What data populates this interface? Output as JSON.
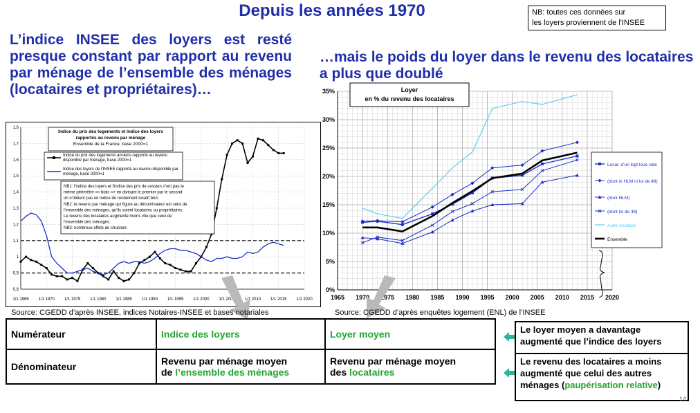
{
  "title": "Depuis les années 1970",
  "nb_note": [
    "NB: toutes ces données sur",
    "les loyers  proviennent de l'INSEE"
  ],
  "left_heading": "L’indice INSEE des loyers est resté presque constant par rapport au revenu par ménage de l’ensemble des ménages (locataires et propriétaires)…",
  "right_heading": "…mais le poids du loyer dans le revenu des locataires a plus que doublé",
  "left_source": "Source: CGEDD d’après INSEE, indices Notaires-INSEE et bases notariales",
  "right_source": "Source: CGEDD d’après enquêtes logement (ENL) de l’INSEE",
  "table": {
    "row1_label": "Numérateur",
    "row1_left": "Indice des loyers",
    "row1_right": "Loyer moyen",
    "row2_label": "Dénominateur",
    "row2_left_a": "Revenu par ménage moyen",
    "row2_left_b": "de ",
    "row2_left_c": "l’ensemble des ménages",
    "row2_right_a": "Revenu par ménage moyen",
    "row2_right_b": "des ",
    "row2_right_c": "locataires"
  },
  "notes": {
    "note1": "Le loyer moyen a davantage augmenté que l’indice des loyers",
    "note2_a": "Le revenu des locataires a moins augmenté que celui des autres ménages (",
    "note2_b": "paupérisation relative",
    "note2_c": ")",
    "page_number": "14"
  },
  "colors": {
    "heading": "#1f2faa",
    "green": "#22a52c",
    "series_black": "#000000",
    "series_blue": "#1a2dc8",
    "series_cyan": "#5ccdf0"
  },
  "chart_data": [
    {
      "type": "line",
      "title_lines": [
        "Indice du prix des logements et indice des loyers",
        "rapportés au revenu par ménage",
        "Ensemble de la France, base 2000=1"
      ],
      "xlim": [
        1965,
        2020
      ],
      "ylim": [
        0.8,
        1.8
      ],
      "x_ticks": [
        "1/1 1965",
        "1/1 1970",
        "1/1 1975",
        "1/1 1980",
        "1/1 1985",
        "1/1 1990",
        "1/1 1995",
        "1/1 2000",
        "1/1 2005",
        "1/1 2010",
        "1/1 2015",
        "1/1 2020"
      ],
      "y_ticks": [
        "0,8",
        "0,9",
        "1",
        "1,1",
        "1,2",
        "1,3",
        "1,4",
        "1,5",
        "1,6",
        "1,7",
        "1,8"
      ],
      "reference_lines": [
        0.9,
        1.1
      ],
      "series": [
        {
          "name": "Indice du prix des logements anciens rapporté au revenu disponible par ménage, base 2000=1",
          "color": "#000000",
          "points": [
            [
              1965,
              0.97
            ],
            [
              1966,
              1.0
            ],
            [
              1967,
              0.98
            ],
            [
              1968,
              0.97
            ],
            [
              1969,
              0.95
            ],
            [
              1970,
              0.93
            ],
            [
              1971,
              0.89
            ],
            [
              1972,
              0.88
            ],
            [
              1973,
              0.88
            ],
            [
              1974,
              0.86
            ],
            [
              1975,
              0.87
            ],
            [
              1976,
              0.85
            ],
            [
              1977,
              0.92
            ],
            [
              1978,
              0.96
            ],
            [
              1979,
              0.93
            ],
            [
              1980,
              0.9
            ],
            [
              1981,
              0.88
            ],
            [
              1982,
              0.86
            ],
            [
              1983,
              0.91
            ],
            [
              1984,
              0.87
            ],
            [
              1985,
              0.85
            ],
            [
              1986,
              0.86
            ],
            [
              1987,
              0.9
            ],
            [
              1988,
              0.96
            ],
            [
              1989,
              0.98
            ],
            [
              1990,
              1.0
            ],
            [
              1991,
              1.03
            ],
            [
              1992,
              0.99
            ],
            [
              1993,
              0.96
            ],
            [
              1994,
              0.95
            ],
            [
              1995,
              0.93
            ],
            [
              1996,
              0.92
            ],
            [
              1997,
              0.91
            ],
            [
              1998,
              0.91
            ],
            [
              1999,
              0.96
            ],
            [
              2000,
              1.0
            ],
            [
              2001,
              1.06
            ],
            [
              2002,
              1.14
            ],
            [
              2003,
              1.3
            ],
            [
              2004,
              1.48
            ],
            [
              2005,
              1.63
            ],
            [
              2006,
              1.7
            ],
            [
              2007,
              1.72
            ],
            [
              2008,
              1.7
            ],
            [
              2009,
              1.58
            ],
            [
              2010,
              1.62
            ],
            [
              2011,
              1.73
            ],
            [
              2012,
              1.72
            ],
            [
              2013,
              1.69
            ],
            [
              2014,
              1.66
            ],
            [
              2015,
              1.64
            ],
            [
              2016,
              1.64
            ]
          ]
        },
        {
          "name": "Indice des loyers de l'INSEE rapporté au revenu disponible par ménage, base 2000=1",
          "color": "#1a2dc8",
          "points": [
            [
              1965,
              1.22
            ],
            [
              1966,
              1.25
            ],
            [
              1967,
              1.27
            ],
            [
              1968,
              1.26
            ],
            [
              1969,
              1.22
            ],
            [
              1970,
              1.13
            ],
            [
              1971,
              1.0
            ],
            [
              1972,
              0.96
            ],
            [
              1973,
              0.93
            ],
            [
              1974,
              0.9
            ],
            [
              1975,
              0.9
            ],
            [
              1976,
              0.91
            ],
            [
              1977,
              0.92
            ],
            [
              1978,
              0.93
            ],
            [
              1979,
              0.91
            ],
            [
              1980,
              0.9
            ],
            [
              1981,
              0.89
            ],
            [
              1982,
              0.9
            ],
            [
              1983,
              0.93
            ],
            [
              1984,
              0.96
            ],
            [
              1985,
              0.97
            ],
            [
              1986,
              0.96
            ],
            [
              1987,
              0.97
            ],
            [
              1988,
              0.97
            ],
            [
              1989,
              0.96
            ],
            [
              1990,
              0.97
            ],
            [
              1991,
              0.99
            ],
            [
              1992,
              1.02
            ],
            [
              1993,
              1.04
            ],
            [
              1994,
              1.05
            ],
            [
              1995,
              1.05
            ],
            [
              1996,
              1.04
            ],
            [
              1997,
              1.04
            ],
            [
              1998,
              1.03
            ],
            [
              1999,
              1.02
            ],
            [
              2000,
              1.0
            ],
            [
              2001,
              0.98
            ],
            [
              2002,
              0.97
            ],
            [
              2003,
              0.99
            ],
            [
              2004,
              0.99
            ],
            [
              2005,
              1.0
            ],
            [
              2006,
              0.99
            ],
            [
              2007,
              0.99
            ],
            [
              2008,
              1.0
            ],
            [
              2009,
              1.03
            ],
            [
              2010,
              1.02
            ],
            [
              2011,
              1.03
            ],
            [
              2012,
              1.06
            ],
            [
              2013,
              1.08
            ],
            [
              2014,
              1.09
            ],
            [
              2015,
              1.08
            ],
            [
              2016,
              1.07
            ]
          ]
        }
      ],
      "notes": [
        "NB1: l'indice des loyers et l'indice des prix de cession n'ont pas le",
        "même périmètre => biais => en divisant le premier par le second",
        "on n'obtient pas un indice du rendement locatif brut.",
        "NB2: le revenu par ménage qui figure au dénominateur est celui de",
        "l'ensemble des ménages, qu'ils soient locataires ou propriétaires.",
        "Le revenu des locataires augmente moins vite que celui de",
        "l'ensemble des ménages.",
        "NB3: nombreux effets de structure"
      ]
    },
    {
      "type": "line",
      "title_lines": [
        "Loyer",
        "en % du revenu des locataires"
      ],
      "xlim": [
        1965,
        2020
      ],
      "ylim": [
        0,
        35
      ],
      "x_ticks": [
        "1965",
        "1970",
        "1975",
        "1980",
        "1985",
        "1990",
        "1995",
        "2000",
        "2005",
        "2010",
        "2015",
        "2020"
      ],
      "y_ticks": [
        "0%",
        "5%",
        "10%",
        "15%",
        "20%",
        "25%",
        "30%",
        "35%"
      ],
      "series": [
        {
          "name": "Locat. d’un logt loué vide",
          "color": "#1a2dc8",
          "marker": "square",
          "width": 1.4,
          "points": [
            [
              1970,
              11.9
            ],
            [
              1973,
              12.1
            ],
            [
              1978,
              11.5
            ],
            [
              1984,
              13.4
            ],
            [
              1988,
              15.1
            ],
            [
              1992,
              17.1
            ],
            [
              1996,
              19.7
            ],
            [
              2002,
              20.2
            ],
            [
              2006,
              22.2
            ],
            [
              2013,
              23.6
            ]
          ]
        },
        {
          "name": "(dont ni HLM ni loi de 48)",
          "color": "#1a2dc8",
          "marker": "diamond",
          "width": 1,
          "points": [
            [
              1970,
              12.1
            ],
            [
              1973,
              12.2
            ],
            [
              1978,
              12.0
            ],
            [
              1984,
              14.6
            ],
            [
              1988,
              16.8
            ],
            [
              1992,
              18.8
            ],
            [
              1996,
              21.5
            ],
            [
              2002,
              22.0
            ],
            [
              2006,
              24.5
            ],
            [
              2013,
              26.0
            ]
          ]
        },
        {
          "name": "(dont HLM)",
          "color": "#1a2dc8",
          "marker": "triangle",
          "width": 1,
          "points": [
            [
              1970,
              9.2
            ],
            [
              1973,
              9.0
            ],
            [
              1978,
              8.2
            ],
            [
              1984,
              10.2
            ],
            [
              1988,
              12.3
            ],
            [
              1992,
              13.9
            ],
            [
              1996,
              15.0
            ],
            [
              2002,
              15.2
            ],
            [
              2006,
              19.0
            ],
            [
              2013,
              20.2
            ]
          ]
        },
        {
          "name": "(dont loi de 48)",
          "color": "#1a2dc8",
          "marker": "cross",
          "width": 1,
          "points": [
            [
              1970,
              8.3
            ],
            [
              1973,
              9.3
            ],
            [
              1978,
              8.7
            ],
            [
              1984,
              11.4
            ],
            [
              1988,
              13.8
            ],
            [
              1992,
              15.2
            ],
            [
              1996,
              17.3
            ],
            [
              2002,
              17.7
            ],
            [
              2006,
              21.0
            ],
            [
              2013,
              22.9
            ]
          ]
        },
        {
          "name": "Autre locataire",
          "color": "#5ccdf0",
          "marker": "none",
          "width": 1.2,
          "points": [
            [
              1970,
              14.4
            ],
            [
              1973,
              13.4
            ],
            [
              1978,
              12.6
            ],
            [
              1984,
              17.9
            ],
            [
              1988,
              21.5
            ],
            [
              1992,
              24.3
            ],
            [
              1996,
              32.0
            ],
            [
              2002,
              33.2
            ],
            [
              2006,
              32.7
            ],
            [
              2013,
              34.4
            ]
          ]
        },
        {
          "name": "Ensemble",
          "color": "#000000",
          "marker": "none",
          "width": 2.6,
          "points": [
            [
              1970,
              11.0
            ],
            [
              1973,
              11.0
            ],
            [
              1978,
              10.3
            ],
            [
              1984,
              13.0
            ],
            [
              1988,
              15.3
            ],
            [
              1992,
              17.4
            ],
            [
              1996,
              19.7
            ],
            [
              2002,
              20.5
            ],
            [
              2006,
              22.8
            ],
            [
              2013,
              24.2
            ]
          ]
        }
      ]
    }
  ]
}
